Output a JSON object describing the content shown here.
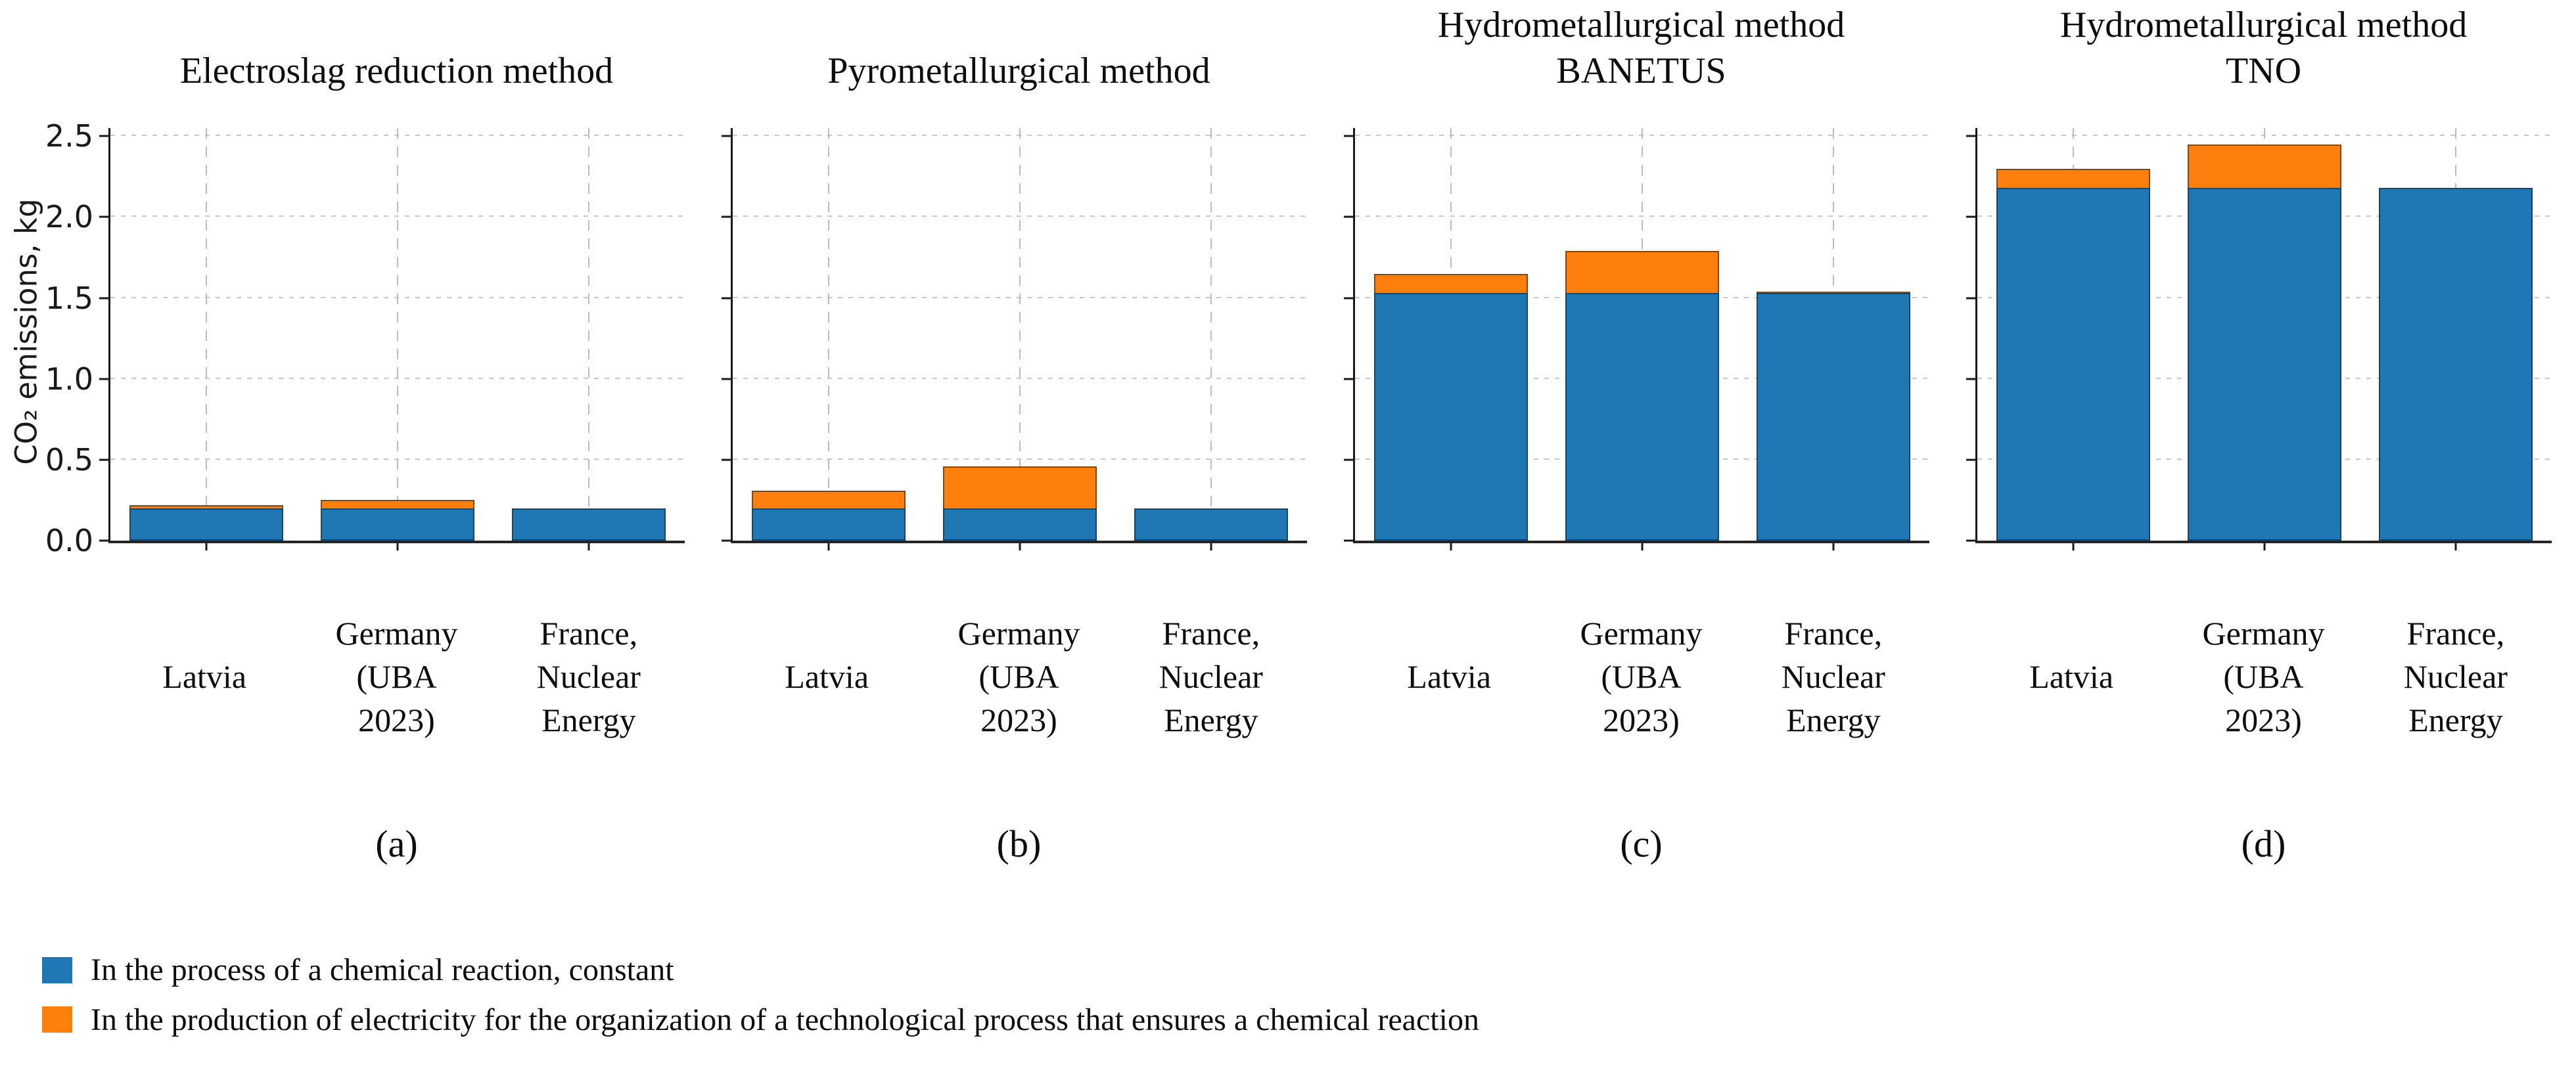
{
  "figure": {
    "ylabel": "CO₂ emissions, kg",
    "y_axis": {
      "ticks": [
        "0.0",
        "0.5",
        "1.0",
        "1.5",
        "2.0",
        "2.5"
      ],
      "tick_values": [
        0,
        0.5,
        1.0,
        1.5,
        2.0,
        2.5
      ]
    },
    "x_tick_label_lines": [
      [
        "Latvia"
      ],
      [
        "Germany",
        "(UBA",
        "2023)"
      ],
      [
        "France,",
        "Nuclear",
        "Energy"
      ]
    ]
  },
  "chart_data": [
    {
      "type": "bar",
      "stacked": true,
      "panel": "a",
      "caption": "(a)",
      "title": "Electroslag reduction method",
      "title_lines": [
        "Electroslag reduction method"
      ],
      "categories": [
        "Latvia",
        "Germany (UBA 2023)",
        "France, Nuclear Energy"
      ],
      "xlabel": "",
      "ylabel": "CO₂ emissions, kg",
      "ylim": [
        0,
        2.55
      ],
      "grid": true,
      "series": [
        {
          "name": "In the process of a chemical reaction, constant",
          "color": "#1f77b4",
          "values": [
            0.2,
            0.2,
            0.2
          ]
        },
        {
          "name": "In the production of electricity for the organization of a technological process that ensures a chemical reaction",
          "color": "#ff7f0e",
          "values": [
            0.02,
            0.05,
            0
          ]
        }
      ]
    },
    {
      "type": "bar",
      "stacked": true,
      "panel": "b",
      "caption": "(b)",
      "title": "Pyrometallurgical method",
      "title_lines": [
        "Pyrometallurgical method"
      ],
      "categories": [
        "Latvia",
        "Germany (UBA 2023)",
        "France, Nuclear Energy"
      ],
      "xlabel": "",
      "ylabel": "CO₂ emissions, kg",
      "ylim": [
        0,
        2.55
      ],
      "grid": true,
      "series": [
        {
          "name": "In the process of a chemical reaction, constant",
          "color": "#1f77b4",
          "values": [
            0.2,
            0.2,
            0.2
          ]
        },
        {
          "name": "In the production of electricity for the organization of a technological process that ensures a chemical reaction",
          "color": "#ff7f0e",
          "values": [
            0.11,
            0.26,
            0
          ]
        }
      ]
    },
    {
      "type": "bar",
      "stacked": true,
      "panel": "c",
      "caption": "(c)",
      "title": "Hydrometallurgical method BANETUS",
      "title_lines": [
        "Hydrometallurgical method",
        "BANETUS"
      ],
      "categories": [
        "Latvia",
        "Germany (UBA 2023)",
        "France, Nuclear Energy"
      ],
      "xlabel": "",
      "ylabel": "CO₂ emissions, kg",
      "ylim": [
        0,
        2.55
      ],
      "grid": true,
      "series": [
        {
          "name": "In the process of a chemical reaction, constant",
          "color": "#1f77b4",
          "values": [
            1.53,
            1.53,
            1.53
          ]
        },
        {
          "name": "In the production of electricity for the organization of a technological process that ensures a chemical reaction",
          "color": "#ff7f0e",
          "values": [
            0.12,
            0.26,
            0.01
          ]
        }
      ]
    },
    {
      "type": "bar",
      "stacked": true,
      "panel": "d",
      "caption": "(d)",
      "title": "Hydrometallurgical method TNO",
      "title_lines": [
        "Hydrometallurgical method",
        "TNO"
      ],
      "categories": [
        "Latvia",
        "Germany (UBA 2023)",
        "France, Nuclear Energy"
      ],
      "xlabel": "",
      "ylabel": "CO₂ emissions, kg",
      "ylim": [
        0,
        2.55
      ],
      "grid": true,
      "series": [
        {
          "name": "In the process of a chemical reaction, constant",
          "color": "#1f77b4",
          "values": [
            2.18,
            2.18,
            2.18
          ]
        },
        {
          "name": "In the production of electricity for the organization of a technological process that ensures a chemical reaction",
          "color": "#ff7f0e",
          "values": [
            0.12,
            0.27,
            0
          ]
        }
      ]
    }
  ],
  "legend": {
    "items": [
      {
        "label": "In the process of a chemical reaction, constant",
        "color": "#1f77b4"
      },
      {
        "label": "In the production of electricity for the organization of a technological process that ensures a chemical reaction",
        "color": "#ff7f0e"
      }
    ]
  }
}
